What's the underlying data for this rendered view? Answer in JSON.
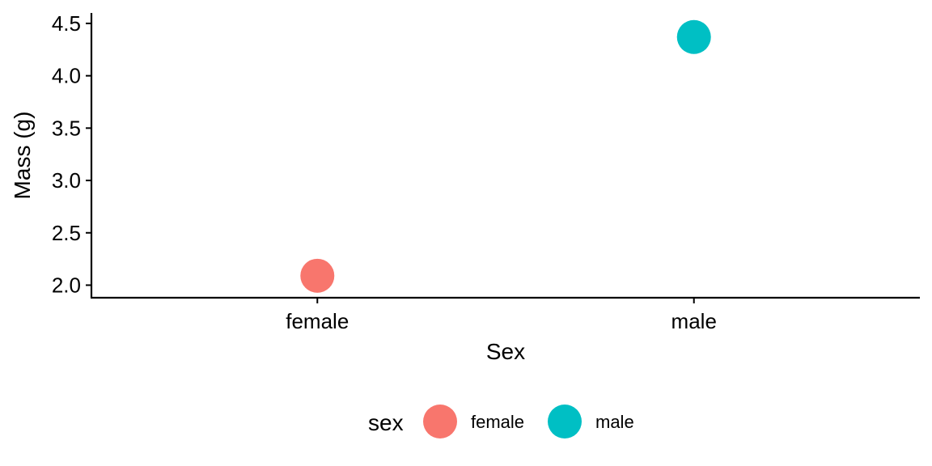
{
  "chart_data": {
    "type": "scatter",
    "title": "",
    "xlabel": "Sex",
    "ylabel": "Mass (g)",
    "categories": [
      "female",
      "male"
    ],
    "ylim": [
      1.88,
      4.6
    ],
    "yticks": [
      2.0,
      2.5,
      3.0,
      3.5,
      4.0,
      4.5
    ],
    "grid": false,
    "legend_position": "bottom",
    "legend_title": "sex",
    "series": [
      {
        "name": "female",
        "x": "female",
        "y": 2.09,
        "color": "#F8766D"
      },
      {
        "name": "male",
        "x": "male",
        "y": 4.37,
        "color": "#00BFC4"
      }
    ]
  }
}
